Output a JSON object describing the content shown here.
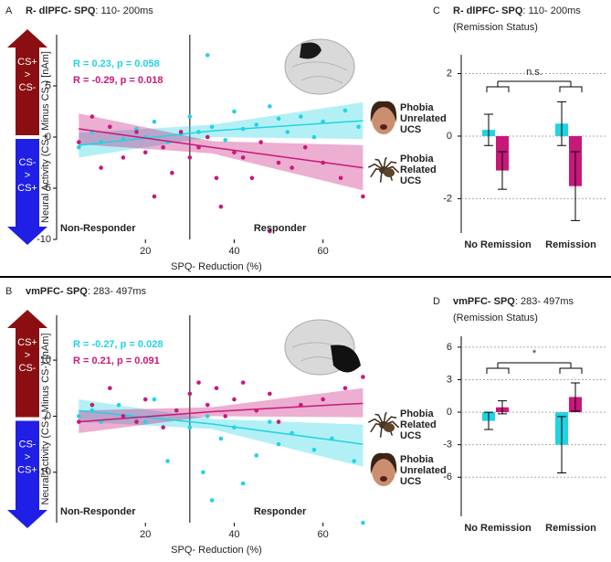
{
  "chart_data": [
    {
      "type": "scatter",
      "panel": "A",
      "title_bold": "R- dlPFC- SPQ",
      "title_rest": ": 110- 200ms",
      "xlabel": "SPQ- Reduction (%)",
      "ylabel": "Neural Activity (CS+ Minus CS-) [nAm]",
      "xlim": [
        0,
        72
      ],
      "xticks": [
        20,
        40,
        60
      ],
      "ylim": [
        -10,
        10
      ],
      "yticks": [
        -10,
        -5,
        0,
        5
      ],
      "divider_x": 30,
      "region_labels": [
        "Non-Responder",
        "Responder"
      ],
      "arrow_up": [
        "CS+",
        ">",
        "CS-"
      ],
      "arrow_down": [
        "CS-",
        ">",
        "CS+"
      ],
      "ucs_labels": [
        [
          "Phobia",
          "Unrelated",
          "UCS"
        ],
        [
          "Phobia",
          "Related",
          "UCS"
        ]
      ],
      "series": [
        {
          "color": "#22d3e3",
          "annotation": "R = 0.23,  p = 0.058",
          "x": [
            5,
            8,
            10,
            12,
            15,
            18,
            20,
            22,
            25,
            28,
            30,
            32,
            34,
            35,
            38,
            40,
            42,
            45,
            48,
            50,
            52,
            55,
            58,
            60,
            65,
            68
          ],
          "values": [
            -1,
            0.5,
            -0.5,
            1,
            -0.2,
            0.8,
            0,
            1.5,
            -0.5,
            0.3,
            2,
            0.5,
            8,
            1,
            -0.3,
            2.5,
            0.8,
            1.2,
            3,
            1.8,
            0.5,
            2,
            0,
            1.5,
            2.6,
            1
          ],
          "fit_x": [
            5,
            35,
            69
          ],
          "fit_values": [
            -0.8,
            0.6,
            1.6
          ],
          "ci_lower": [
            -2,
            0,
            -0.2
          ],
          "ci_upper": [
            0.4,
            1.2,
            3.4
          ]
        },
        {
          "color": "#c8187a",
          "annotation": "R = -0.29, p = 0.018",
          "x": [
            5,
            8,
            10,
            12,
            15,
            18,
            20,
            22,
            24,
            26,
            28,
            30,
            32,
            34,
            36,
            37,
            40,
            42,
            44,
            46,
            48,
            50,
            53,
            56,
            60,
            64,
            69
          ],
          "values": [
            -0.5,
            2,
            -3,
            1,
            -2,
            0.5,
            -1.5,
            -5.8,
            -1,
            -3.5,
            0.5,
            -2,
            -1,
            0,
            -4,
            -6.8,
            -1.5,
            -2,
            -4,
            -0.5,
            -9.2,
            -2.5,
            -3,
            -1,
            -2.5,
            -4,
            -5.8
          ],
          "fit_x": [
            5,
            35,
            69
          ],
          "fit_values": [
            0.8,
            -1,
            -3
          ],
          "ci_lower": [
            -0.7,
            -1.6,
            -5.2
          ],
          "ci_upper": [
            2.3,
            -0.4,
            -0.8
          ]
        }
      ]
    },
    {
      "type": "bar",
      "panel": "C",
      "title_bold": "R- dlPFC- SPQ",
      "title_rest": ": 110- 200ms",
      "subtitle": "(Remission Status)",
      "categories": [
        "No Remission",
        "Remission"
      ],
      "ylim": [
        -3.1,
        2.6
      ],
      "yticks": [
        -2,
        0,
        2
      ],
      "significance": "n.s.",
      "series": [
        {
          "color": "#22d3e3",
          "values": [
            0.2,
            0.4
          ],
          "errors": [
            0.5,
            0.7
          ]
        },
        {
          "color": "#c8187a",
          "values": [
            -1.1,
            -1.6
          ],
          "errors": [
            0.6,
            1.1
          ]
        }
      ]
    },
    {
      "type": "scatter",
      "panel": "B",
      "title_bold": "vmPFC- SPQ",
      "title_rest": ": 283- 497ms",
      "xlabel": "SPQ- Reduction (%)",
      "ylabel": "Neural Activity (CS+ Minus CS-) [nAm]",
      "xlim": [
        0,
        72
      ],
      "xticks": [
        20,
        40,
        60
      ],
      "ylim": [
        -19,
        18
      ],
      "yticks": [
        -10,
        0,
        10
      ],
      "divider_x": 30,
      "region_labels": [
        "Non-Responder",
        "Responder"
      ],
      "arrow_up": [
        "CS+",
        ">",
        "CS-"
      ],
      "arrow_down": [
        "CS-",
        ">",
        "CS+"
      ],
      "ucs_labels": [
        [
          "Phobia",
          "Related",
          "UCS"
        ],
        [
          "Phobia",
          "Unrelated",
          "UCS"
        ]
      ],
      "series": [
        {
          "color": "#22d3e3",
          "annotation": "R = -0.27, p = 0.028",
          "x": [
            5,
            8,
            10,
            14,
            16,
            20,
            22,
            25,
            27,
            30,
            33,
            34,
            35,
            37,
            40,
            42,
            45,
            48,
            50,
            53,
            58,
            62,
            67,
            69
          ],
          "values": [
            0,
            1,
            -1,
            2,
            0,
            -1,
            3,
            -8,
            1,
            -2,
            -10,
            0,
            -15,
            -4,
            -2,
            -12,
            -7,
            -1,
            -5,
            -3,
            -6,
            -4,
            -8,
            -19
          ],
          "fit_x": [
            5,
            35,
            69
          ],
          "fit_values": [
            1,
            -1.4,
            -5
          ],
          "ci_lower": [
            -1,
            -2.3,
            -9
          ],
          "ci_upper": [
            3,
            -0.5,
            -1.5
          ]
        },
        {
          "color": "#c8187a",
          "annotation": "R = 0.21,  p = 0.091",
          "x": [
            5,
            8,
            12,
            15,
            18,
            20,
            24,
            27,
            30,
            32,
            34,
            36,
            38,
            40,
            42,
            45,
            48,
            50,
            55,
            60,
            65,
            69
          ],
          "values": [
            -1,
            2,
            5,
            0,
            -1,
            3,
            -2,
            1,
            4,
            6,
            2,
            5,
            0,
            3,
            6,
            1,
            4,
            -1,
            2,
            3,
            5,
            7
          ],
          "fit_x": [
            5,
            35,
            69
          ],
          "fit_values": [
            -1,
            0.8,
            2.3
          ],
          "ci_lower": [
            -3,
            0,
            -0.2
          ],
          "ci_upper": [
            1,
            1.6,
            5
          ]
        }
      ]
    },
    {
      "type": "bar",
      "panel": "D",
      "title_bold": "vmPFC- SPQ",
      "title_rest": ": 283- 497ms",
      "subtitle": "(Remission Status)",
      "categories": [
        "No Remission",
        "Remission"
      ],
      "ylim": [
        -9.6,
        7
      ],
      "yticks": [
        -6,
        -3,
        0,
        3,
        6
      ],
      "significance": "*",
      "series": [
        {
          "color": "#22d3e3",
          "values": [
            -0.8,
            -3.0
          ],
          "errors": [
            0.8,
            2.6
          ]
        },
        {
          "color": "#c8187a",
          "values": [
            0.45,
            1.4
          ],
          "errors": [
            0.6,
            1.3
          ]
        }
      ]
    }
  ]
}
